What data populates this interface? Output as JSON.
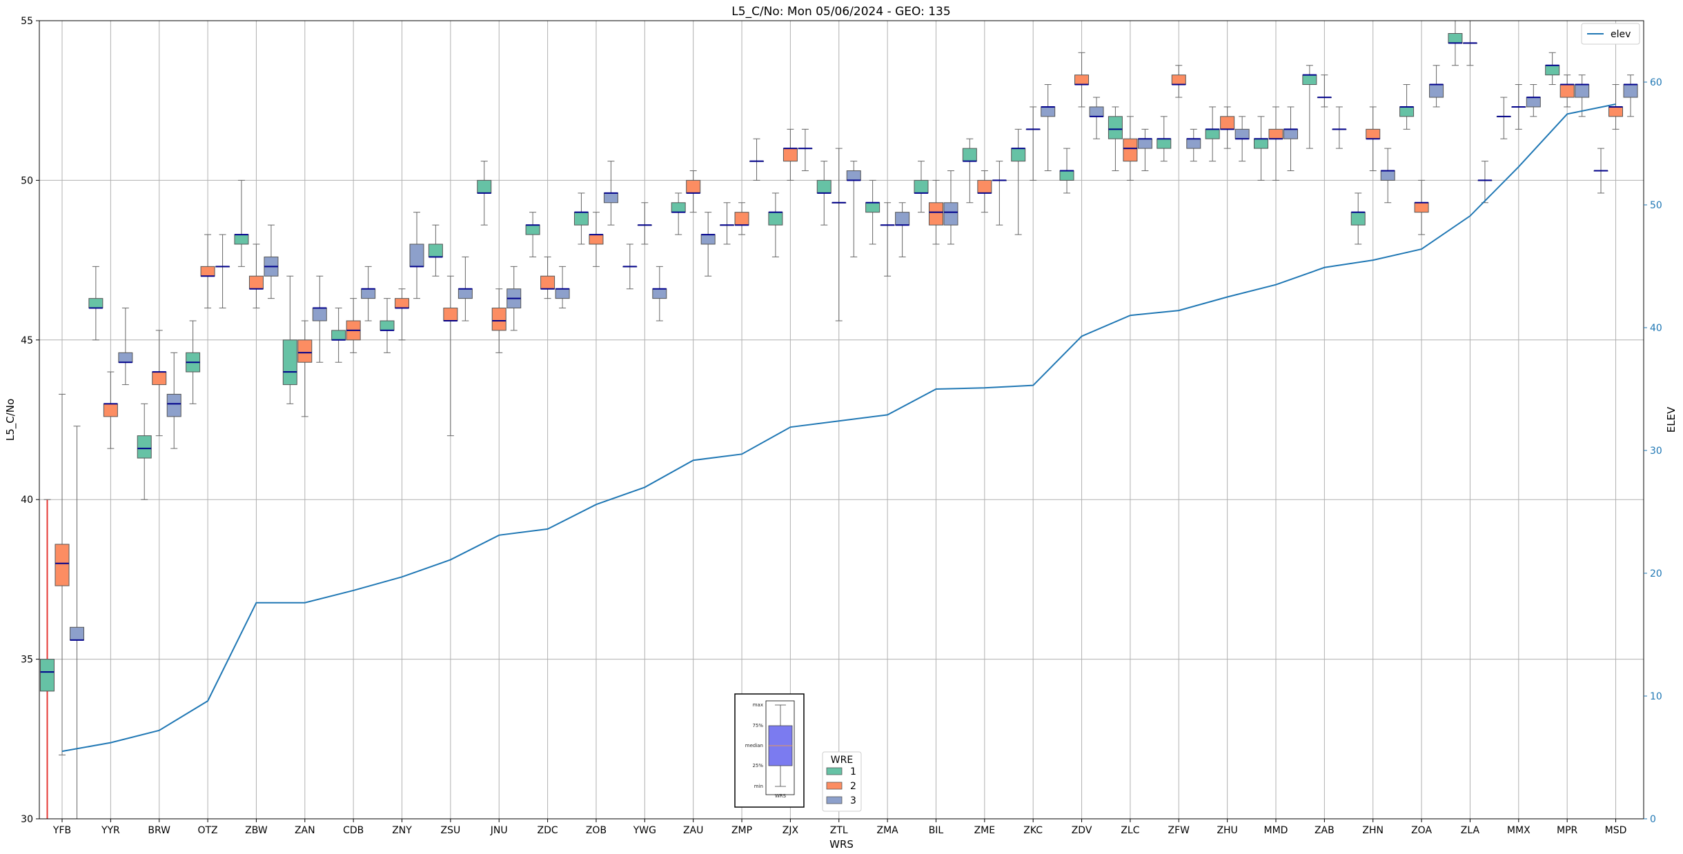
{
  "chart_data": {
    "type": "boxplot",
    "title": "L5_C/No: Mon 05/06/2024 - GEO: 135",
    "xlabel": "WRS",
    "ylabel": "L5_C/No",
    "y2label": "ELEV",
    "ylim": [
      30,
      55
    ],
    "y2lim": [
      0,
      65
    ],
    "yticks": [
      30,
      35,
      40,
      45,
      50,
      55
    ],
    "y2ticks": [
      0,
      10,
      20,
      30,
      40,
      50,
      60
    ],
    "grid": true,
    "categories": [
      "YFB",
      "YYR",
      "BRW",
      "OTZ",
      "ZBW",
      "ZAN",
      "CDB",
      "ZNY",
      "ZSU",
      "JNU",
      "ZDC",
      "ZOB",
      "YWG",
      "ZAU",
      "ZMP",
      "ZJX",
      "ZTL",
      "ZMA",
      "BIL",
      "ZME",
      "ZKC",
      "ZDV",
      "ZLC",
      "ZFW",
      "ZHU",
      "MMD",
      "ZAB",
      "ZHN",
      "ZOA",
      "ZLA",
      "MMX",
      "MPR",
      "MSD"
    ],
    "legend": {
      "title": "WRE",
      "placement": "bottom-center",
      "entries": [
        {
          "name": "1",
          "color": "#66c2a5"
        },
        {
          "name": "2",
          "color": "#fc8d62"
        },
        {
          "name": "3",
          "color": "#8da0cb"
        }
      ]
    },
    "elev_legend": {
      "label": "elev",
      "placement": "top-right",
      "color": "#1f77b4"
    },
    "box_key": {
      "labels": [
        "max",
        "75%",
        "median",
        "25%",
        "min"
      ],
      "xlabel": "WRS",
      "color": "#7b7bf0"
    },
    "boxes": [
      [
        [
          30,
          34,
          34.6,
          35,
          40
        ],
        [
          32,
          37.3,
          38,
          38.6,
          43.3
        ],
        [
          30,
          35.6,
          35.6,
          36,
          42.3
        ]
      ],
      [
        [
          45,
          46,
          46,
          46.3,
          47.3
        ],
        [
          41.6,
          42.6,
          43,
          43,
          44
        ],
        [
          43.6,
          44.3,
          44.3,
          44.6,
          46
        ]
      ],
      [
        [
          40,
          41.3,
          41.6,
          42,
          43
        ],
        [
          42,
          43.6,
          44,
          44,
          45.3
        ],
        [
          41.6,
          42.6,
          43,
          43.3,
          44.6
        ]
      ],
      [
        [
          43,
          44,
          44.3,
          44.6,
          45.6
        ],
        [
          46,
          47,
          47,
          47.3,
          48.3
        ],
        [
          46,
          47.3,
          47.3,
          47.3,
          48.3
        ]
      ],
      [
        [
          47.3,
          48,
          48.3,
          48.3,
          50
        ],
        [
          46,
          46.6,
          46.6,
          47,
          48
        ],
        [
          46.3,
          47,
          47.3,
          47.6,
          48.6
        ]
      ],
      [
        [
          43,
          43.6,
          44,
          45,
          47
        ],
        [
          42.6,
          44.3,
          44.6,
          45,
          45.6
        ],
        [
          44.3,
          45.6,
          46,
          46,
          47
        ]
      ],
      [
        [
          44.3,
          45,
          45,
          45.3,
          46
        ],
        [
          44.6,
          45,
          45.3,
          45.6,
          46.3
        ],
        [
          45.6,
          46.3,
          46.6,
          46.6,
          47.3
        ]
      ],
      [
        [
          44.6,
          45.3,
          45.3,
          45.6,
          46.3
        ],
        [
          45,
          46,
          46,
          46.3,
          46.6
        ],
        [
          46.3,
          47.3,
          47.3,
          48,
          49
        ]
      ],
      [
        [
          47,
          47.6,
          47.6,
          48,
          48.6
        ],
        [
          42,
          45.6,
          45.6,
          46,
          47
        ],
        [
          45.6,
          46.3,
          46.6,
          46.6,
          47.6
        ]
      ],
      [
        [
          48.6,
          49.6,
          49.6,
          50,
          50.6
        ],
        [
          44.6,
          45.3,
          45.6,
          46,
          46.6
        ],
        [
          45.3,
          46,
          46.3,
          46.6,
          47.3
        ]
      ],
      [
        [
          47.6,
          48.3,
          48.6,
          48.6,
          49
        ],
        [
          46.3,
          46.6,
          46.6,
          47,
          47.6
        ],
        [
          46,
          46.3,
          46.6,
          46.6,
          47.3
        ]
      ],
      [
        [
          48,
          48.6,
          49,
          49,
          49.6
        ],
        [
          47.3,
          48,
          48.3,
          48.3,
          49
        ],
        [
          48.6,
          49.3,
          49.6,
          49.6,
          50.6
        ]
      ],
      [
        [
          46.6,
          47.3,
          47.3,
          47.3,
          48
        ],
        [
          48,
          48.6,
          48.6,
          48.6,
          49.3
        ],
        [
          45.6,
          46.3,
          46.6,
          46.6,
          47.3
        ]
      ],
      [
        [
          48.3,
          49,
          49,
          49.3,
          49.6
        ],
        [
          49,
          49.6,
          49.6,
          50,
          50.3
        ],
        [
          47,
          48,
          48.3,
          48.3,
          49
        ]
      ],
      [
        [
          48,
          48.6,
          48.6,
          48.6,
          49.3
        ],
        [
          48.3,
          48.6,
          48.6,
          49,
          49.3
        ],
        [
          50,
          50.6,
          50.6,
          50.6,
          51.3
        ]
      ],
      [
        [
          47.6,
          48.6,
          49,
          49,
          49.6
        ],
        [
          50,
          50.6,
          51,
          51,
          51.6
        ],
        [
          50.3,
          51,
          51,
          51,
          51.6
        ]
      ],
      [
        [
          48.6,
          49.6,
          49.6,
          50,
          50.6
        ],
        [
          45.6,
          49.3,
          49.3,
          49.3,
          51
        ],
        [
          47.6,
          50,
          50,
          50.3,
          50.6
        ]
      ],
      [
        [
          48,
          49,
          49.3,
          49.3,
          50
        ],
        [
          47,
          48.6,
          48.6,
          48.6,
          49.3
        ],
        [
          47.6,
          48.6,
          48.6,
          49,
          49.3
        ]
      ],
      [
        [
          49,
          49.6,
          49.6,
          50,
          50.6
        ],
        [
          48,
          48.6,
          49,
          49.3,
          50
        ],
        [
          48,
          48.6,
          49,
          49.3,
          50.3
        ]
      ],
      [
        [
          49.3,
          50.6,
          50.6,
          51,
          51.3
        ],
        [
          49,
          49.6,
          49.6,
          50,
          50.3
        ],
        [
          48.6,
          50,
          50,
          50,
          50.6
        ]
      ],
      [
        [
          48.3,
          50.6,
          51,
          51,
          51.6
        ],
        [
          50,
          51.6,
          51.6,
          51.6,
          52.3
        ],
        [
          50.3,
          52,
          52.3,
          52.3,
          53
        ]
      ],
      [
        [
          49.6,
          50,
          50.3,
          50.3,
          51
        ],
        [
          52.3,
          53,
          53,
          53.3,
          54
        ],
        [
          51.3,
          52,
          52,
          52.3,
          52.6
        ]
      ],
      [
        [
          50.3,
          51.3,
          51.6,
          52,
          52.3
        ],
        [
          50,
          50.6,
          51,
          51.3,
          52
        ],
        [
          50.3,
          51,
          51.3,
          51.3,
          51.6
        ]
      ],
      [
        [
          50.6,
          51,
          51.3,
          51.3,
          52
        ],
        [
          52.6,
          53,
          53,
          53.3,
          53.6
        ],
        [
          50.6,
          51,
          51.3,
          51.3,
          51.6
        ]
      ],
      [
        [
          50.6,
          51.3,
          51.6,
          51.6,
          52.3
        ],
        [
          51,
          51.6,
          51.6,
          52,
          52.3
        ],
        [
          50.6,
          51.3,
          51.3,
          51.6,
          52
        ]
      ],
      [
        [
          50,
          51,
          51.3,
          51.3,
          52
        ],
        [
          50,
          51.3,
          51.3,
          51.6,
          52.3
        ],
        [
          50.3,
          51.3,
          51.6,
          51.6,
          52.3
        ]
      ],
      [
        [
          51,
          53,
          53.3,
          53.3,
          53.6
        ],
        [
          52.3,
          52.6,
          52.6,
          52.6,
          53.3
        ],
        [
          51,
          51.6,
          51.6,
          51.6,
          52.3
        ]
      ],
      [
        [
          48,
          48.6,
          49,
          49,
          49.6
        ],
        [
          50.3,
          51.3,
          51.3,
          51.6,
          52.3
        ],
        [
          49.3,
          50,
          50.3,
          50.3,
          51
        ]
      ],
      [
        [
          51.6,
          52,
          52.3,
          52.3,
          53
        ],
        [
          48.3,
          49,
          49.3,
          49.3,
          50
        ],
        [
          52.3,
          52.6,
          53,
          53,
          53.6
        ]
      ],
      [
        [
          53.6,
          54.3,
          54.3,
          54.6,
          55
        ],
        [
          53.6,
          54.3,
          54.3,
          54.3,
          55
        ],
        [
          49.3,
          50,
          50,
          50,
          50.6
        ]
      ],
      [
        [
          51.3,
          52,
          52,
          52,
          52.6
        ],
        [
          51.6,
          52.3,
          52.3,
          52.3,
          53
        ],
        [
          52,
          52.3,
          52.6,
          52.6,
          53
        ]
      ],
      [
        [
          53,
          53.3,
          53.6,
          53.6,
          54
        ],
        [
          52.3,
          52.6,
          53,
          53,
          53.3
        ],
        [
          52,
          52.6,
          53,
          53,
          53.3
        ]
      ],
      [
        [
          49.6,
          50.3,
          50.3,
          50.3,
          51
        ],
        [
          51.6,
          52,
          52.3,
          52.3,
          53
        ],
        [
          52,
          52.6,
          53,
          53,
          53.3
        ]
      ]
    ],
    "elev": [
      5.5,
      6.2,
      7.2,
      9.6,
      17.6,
      17.6,
      18.6,
      19.7,
      21.1,
      23.1,
      23.6,
      25.6,
      27.0,
      29.2,
      29.7,
      31.9,
      32.4,
      32.9,
      35.0,
      35.1,
      35.3,
      39.3,
      41.0,
      41.4,
      42.5,
      43.5,
      44.9,
      45.5,
      46.4,
      49.1,
      53.1,
      57.4,
      58.2
    ]
  }
}
